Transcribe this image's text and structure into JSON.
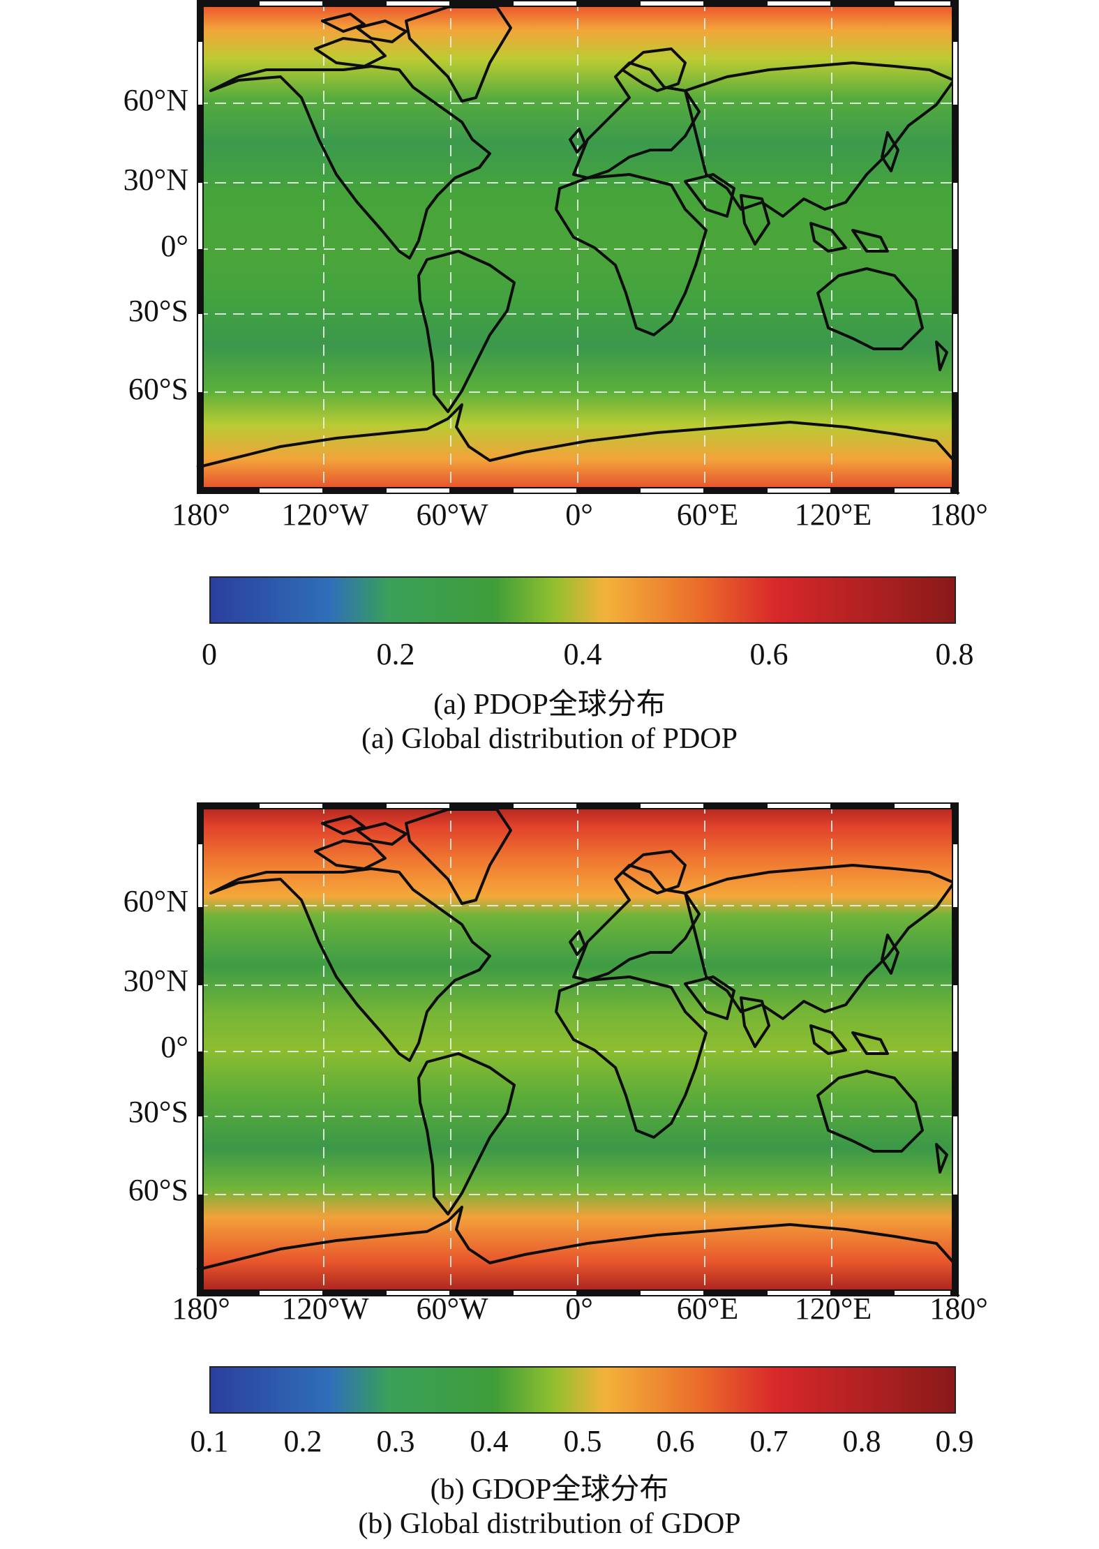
{
  "panels": [
    {
      "id": "a",
      "lat_labels": [
        "60°N",
        "30°N",
        "0°",
        "30°S",
        "60°S"
      ],
      "lon_labels": [
        "180°",
        "120°W",
        "60°W",
        "0°",
        "60°E",
        "120°E",
        "180°"
      ],
      "colorbar_ticks": [
        "0",
        "0.2",
        "0.4",
        "0.6",
        "0.8"
      ],
      "caption_cn": "(a) PDOP全球分布",
      "caption_en": "(a) Global distribution of PDOP"
    },
    {
      "id": "b",
      "lat_labels": [
        "60°N",
        "30°N",
        "0°",
        "30°S",
        "60°S"
      ],
      "lon_labels": [
        "180°",
        "120°W",
        "60°W",
        "0°",
        "60°E",
        "120°E",
        "180°"
      ],
      "colorbar_ticks": [
        "0.1",
        "0.2",
        "0.3",
        "0.4",
        "0.5",
        "0.6",
        "0.7",
        "0.8",
        "0.9"
      ],
      "caption_cn": "(b) GDOP全球分布",
      "caption_en": "(b) Global distribution of GDOP"
    }
  ],
  "colormap": [
    "#2b3f9e",
    "#2f6fb8",
    "#3aa05a",
    "#3f9d3a",
    "#8fbf2f",
    "#f3b23a",
    "#ea6a2a",
    "#d8282a",
    "#8a1a1a"
  ]
}
